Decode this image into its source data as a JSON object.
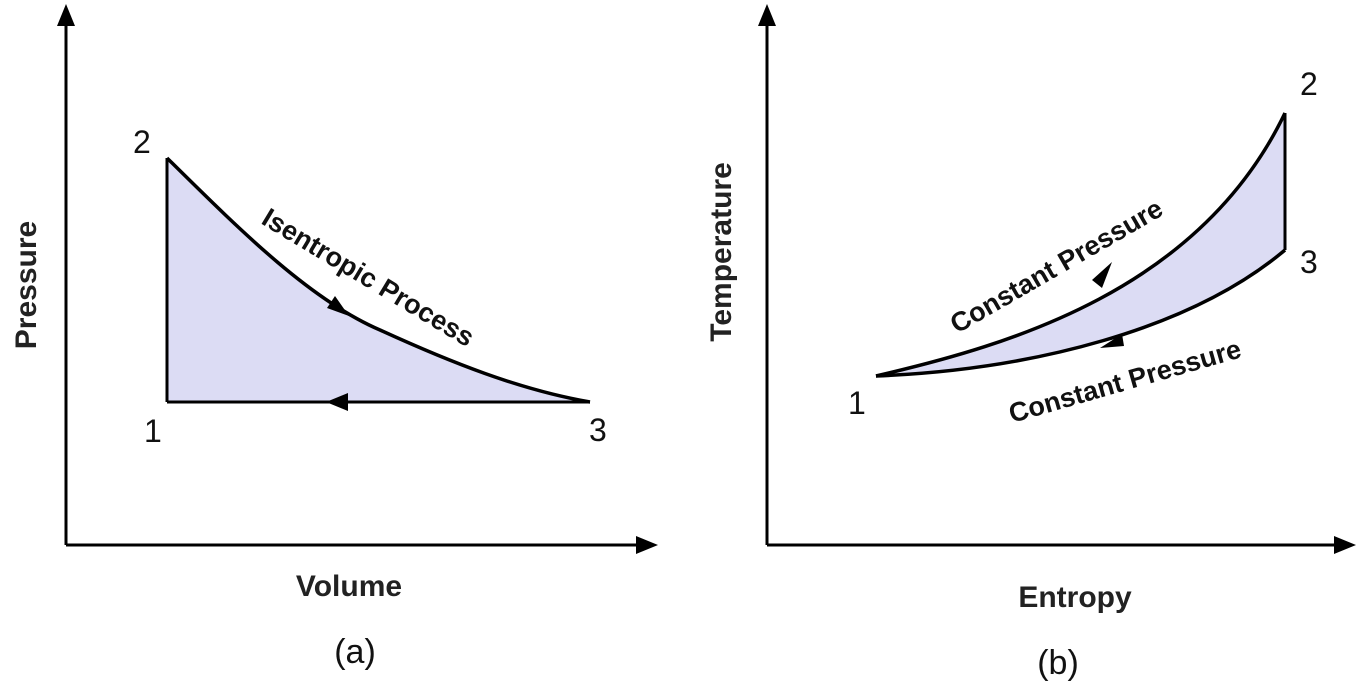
{
  "colors": {
    "line": "#000000",
    "region_fill": "#dcdcf4",
    "background": "#ffffff"
  },
  "panel_a": {
    "caption": "(a)",
    "x_axis_label": "Volume",
    "y_axis_label": "Pressure",
    "states": [
      "1",
      "2",
      "3"
    ],
    "process_label": "Isentropic Process"
  },
  "panel_b": {
    "caption": "(b)",
    "x_axis_label": "Entropy",
    "y_axis_label": "Temperature",
    "states": [
      "1",
      "2",
      "3"
    ],
    "upper_process_label": "Constant Pressure",
    "lower_process_label": "Constant Pressure"
  }
}
